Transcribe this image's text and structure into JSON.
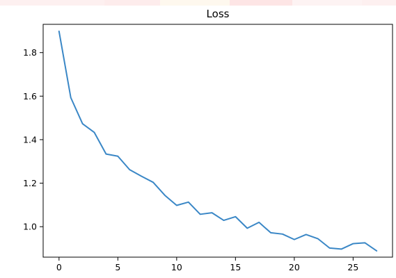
{
  "chart_data": {
    "type": "line",
    "title": "Loss",
    "xlabel": "",
    "ylabel": "",
    "xlim": [
      -1.35,
      28.35
    ],
    "ylim": [
      0.86,
      1.93
    ],
    "xticks": [
      0,
      5,
      10,
      15,
      20,
      25
    ],
    "xtick_labels": [
      "0",
      "5",
      "10",
      "15",
      "20",
      "25"
    ],
    "yticks": [
      1.0,
      1.2,
      1.4,
      1.6,
      1.8
    ],
    "ytick_labels": [
      "1.0",
      "1.2",
      "1.4",
      "1.6",
      "1.8"
    ],
    "grid": false,
    "legend": false,
    "series": [
      {
        "color": "#3a87c6",
        "x": [
          0,
          1,
          2,
          3,
          4,
          5,
          6,
          7,
          8,
          9,
          10,
          11,
          12,
          13,
          14,
          15,
          16,
          17,
          18,
          19,
          20,
          21,
          22,
          23,
          24,
          25,
          26,
          27
        ],
        "values": [
          1.898,
          1.593,
          1.473,
          1.433,
          1.334,
          1.324,
          1.262,
          1.232,
          1.204,
          1.144,
          1.098,
          1.113,
          1.057,
          1.064,
          1.029,
          1.046,
          0.993,
          1.02,
          0.972,
          0.966,
          0.941,
          0.964,
          0.945,
          0.902,
          0.897,
          0.922,
          0.926,
          0.889
        ]
      }
    ]
  }
}
